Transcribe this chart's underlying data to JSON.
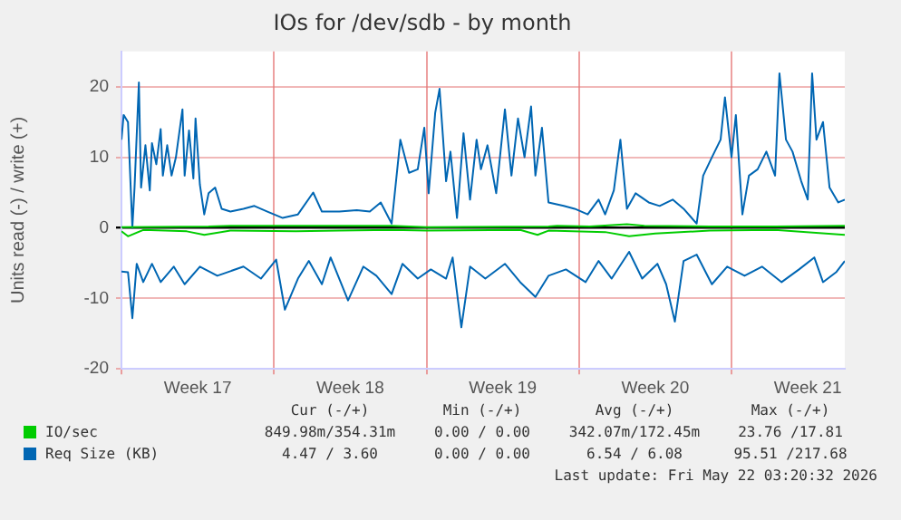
{
  "chart_data": {
    "type": "line",
    "title": "IOs for /dev/sdb - by month",
    "ylabel": "Units read (-) / write (+)",
    "xlim": [
      "2026-04-20T00:00",
      "2026-05-23T04:48"
    ],
    "xticks": [
      {
        "value": "2026-04-20T00:00",
        "label": null
      },
      {
        "value": "2026-04-23T12:00",
        "label": "Week 17"
      },
      {
        "value": "2026-04-27T00:00",
        "label": null
      },
      {
        "value": "2026-04-30T12:00",
        "label": "Week 18"
      },
      {
        "value": "2026-05-04T00:00",
        "label": null
      },
      {
        "value": "2026-05-07T12:00",
        "label": "Week 19"
      },
      {
        "value": "2026-05-11T00:00",
        "label": null
      },
      {
        "value": "2026-05-14T12:00",
        "label": "Week 20"
      },
      {
        "value": "2026-05-18T00:00",
        "label": null
      },
      {
        "value": "2026-05-21T12:00",
        "label": "Week 21"
      }
    ],
    "ylim": [
      -20,
      25
    ],
    "yticks": [
      -20,
      -10,
      0,
      10,
      20
    ],
    "grid": true,
    "legend": "bottom left",
    "marker": "none",
    "line_style": "solid",
    "series": [
      {
        "color": "#00cc00",
        "x": [
          "2026-04-20T00:00",
          "2026-04-20T07:12",
          "2026-04-21T00:00",
          "2026-04-23T00:00",
          "2026-04-23T19:12",
          "2026-04-25T00:00",
          "2026-04-28T00:00",
          "2026-04-30T00:00",
          "2026-05-02T09:36",
          "2026-05-04T00:00",
          "2026-05-08T07:12",
          "2026-05-09T02:24",
          "2026-05-09T14:24",
          "2026-05-12T04:48",
          "2026-05-13T07:12",
          "2026-05-14T12:00",
          "2026-05-17T00:00",
          "2026-05-20T00:00",
          "2026-05-23T04:48"
        ],
        "values": [
          -0.5,
          -1.2,
          -0.3,
          -0.5,
          -1,
          -0.4,
          -0.5,
          -0.4,
          -0.3,
          -0.4,
          -0.3,
          -1,
          -0.4,
          -0.6,
          -1.2,
          -0.8,
          -0.4,
          -0.3,
          -1
        ]
      },
      {
        "name": "IO/sec",
        "color": "#00cc00",
        "x": [
          "2026-04-20T00:00",
          "2026-04-24T00:00",
          "2026-04-25T00:00",
          "2026-04-30T00:00",
          "2026-05-02T09:36",
          "2026-05-04T00:00",
          "2026-05-09T14:24",
          "2026-05-10T00:00",
          "2026-05-11T12:00",
          "2026-05-13T04:48",
          "2026-05-14T00:00",
          "2026-05-17T00:00",
          "2026-05-20T00:00",
          "2026-05-23T04:48"
        ],
        "values": [
          0.1,
          0.2,
          0.3,
          0.3,
          0.3,
          0.1,
          0.2,
          0.3,
          0.2,
          0.5,
          0.3,
          0.2,
          0.2,
          0.3
        ]
      },
      {
        "color": "#0066b3",
        "x": [
          "2026-04-20T00:00",
          "2026-04-20T07:12",
          "2026-04-20T12:00",
          "2026-04-20T16:48",
          "2026-04-21T00:00",
          "2026-04-21T09:36",
          "2026-04-21T19:12",
          "2026-04-22T09:36",
          "2026-04-22T21:36",
          "2026-04-23T14:24",
          "2026-04-24T09:36",
          "2026-04-25T14:24",
          "2026-04-26T09:36",
          "2026-04-27T02:24",
          "2026-04-27T12:00",
          "2026-04-28T02:24",
          "2026-04-28T14:24",
          "2026-04-29T04:48",
          "2026-04-29T14:24",
          "2026-04-30T09:36",
          "2026-05-01T02:24",
          "2026-05-01T16:48",
          "2026-05-02T09:36",
          "2026-05-02T21:36",
          "2026-05-03T14:24",
          "2026-05-04T04:48",
          "2026-05-04T21:36",
          "2026-05-05T04:48",
          "2026-05-05T14:24",
          "2026-05-06T00:00",
          "2026-05-06T16:48",
          "2026-05-07T14:24",
          "2026-05-08T07:12",
          "2026-05-09T00:00",
          "2026-05-09T14:24",
          "2026-05-10T09:36",
          "2026-05-11T07:12",
          "2026-05-11T21:36",
          "2026-05-12T12:00",
          "2026-05-13T07:12",
          "2026-05-13T21:36",
          "2026-05-14T14:24",
          "2026-05-15T00:00",
          "2026-05-15T09:36",
          "2026-05-15T19:12",
          "2026-05-16T09:36",
          "2026-05-17T02:24",
          "2026-05-17T19:12",
          "2026-05-18T14:24",
          "2026-05-19T09:36",
          "2026-05-20T07:12",
          "2026-05-21T02:24",
          "2026-05-21T19:12",
          "2026-05-22T04:48",
          "2026-05-22T19:12",
          "2026-05-23T04:48"
        ],
        "values": [
          -6.2,
          -6.3,
          -12.8,
          -5.1,
          -7.7,
          -5.1,
          -7.7,
          -5.5,
          -8,
          -5.5,
          -6.8,
          -5.5,
          -7.2,
          -4.5,
          -11.6,
          -7.2,
          -4.7,
          -8,
          -4.2,
          -10.3,
          -5.5,
          -6.8,
          -9.4,
          -5.1,
          -7.2,
          -5.9,
          -7.2,
          -4.2,
          -14.1,
          -5.5,
          -7.2,
          -5.1,
          -7.7,
          -9.8,
          -6.8,
          -5.9,
          -7.7,
          -4.7,
          -7.2,
          -3.4,
          -7.2,
          -5.1,
          -8,
          -13.3,
          -4.7,
          -3.8,
          -8,
          -5.5,
          -6.8,
          -5.5,
          -7.7,
          -5.9,
          -4.2,
          -7.7,
          -6.3,
          -4.7
        ]
      },
      {
        "name": "Req Size (KB)",
        "color": "#0066b3",
        "x": [
          "2026-04-20T00:00",
          "2026-04-20T02:24",
          "2026-04-20T07:12",
          "2026-04-20T12:00",
          "2026-04-20T14:24",
          "2026-04-20T19:12",
          "2026-04-20T21:36",
          "2026-04-21T02:24",
          "2026-04-21T07:12",
          "2026-04-21T09:36",
          "2026-04-21T14:24",
          "2026-04-21T19:12",
          "2026-04-21T21:36",
          "2026-04-22T02:24",
          "2026-04-22T07:12",
          "2026-04-22T12:00",
          "2026-04-22T19:12",
          "2026-04-22T21:36",
          "2026-04-23T02:24",
          "2026-04-23T07:12",
          "2026-04-23T09:36",
          "2026-04-23T14:24",
          "2026-04-23T19:12",
          "2026-04-24T00:00",
          "2026-04-24T07:12",
          "2026-04-24T14:24",
          "2026-04-25T00:00",
          "2026-04-25T14:24",
          "2026-04-26T02:24",
          "2026-04-26T16:48",
          "2026-04-27T09:36",
          "2026-04-28T02:24",
          "2026-04-28T19:12",
          "2026-04-29T04:48",
          "2026-04-30T00:00",
          "2026-04-30T19:12",
          "2026-05-01T09:36",
          "2026-05-01T21:36",
          "2026-05-02T09:36",
          "2026-05-02T19:12",
          "2026-05-03T04:48",
          "2026-05-03T14:24",
          "2026-05-03T21:36",
          "2026-05-04T02:24",
          "2026-05-04T09:36",
          "2026-05-04T14:24",
          "2026-05-04T21:36",
          "2026-05-05T02:24",
          "2026-05-05T09:36",
          "2026-05-05T16:48",
          "2026-05-06T00:00",
          "2026-05-06T07:12",
          "2026-05-06T12:00",
          "2026-05-06T19:12",
          "2026-05-07T04:48",
          "2026-05-07T14:24",
          "2026-05-07T21:36",
          "2026-05-08T04:48",
          "2026-05-08T12:00",
          "2026-05-08T19:12",
          "2026-05-09T00:00",
          "2026-05-09T07:12",
          "2026-05-09T14:24",
          "2026-05-10T07:12",
          "2026-05-10T19:12",
          "2026-05-11T09:36",
          "2026-05-11T21:36",
          "2026-05-12T04:48",
          "2026-05-12T14:24",
          "2026-05-12T21:36",
          "2026-05-13T04:48",
          "2026-05-13T14:24",
          "2026-05-14T04:48",
          "2026-05-14T16:48",
          "2026-05-15T07:12",
          "2026-05-15T19:12",
          "2026-05-16T09:36",
          "2026-05-16T16:48",
          "2026-05-17T02:24",
          "2026-05-17T12:00",
          "2026-05-17T16:48",
          "2026-05-18T00:00",
          "2026-05-18T04:48",
          "2026-05-18T12:00",
          "2026-05-18T19:12",
          "2026-05-19T04:48",
          "2026-05-19T14:24",
          "2026-05-20T00:00",
          "2026-05-20T04:48",
          "2026-05-20T12:00",
          "2026-05-20T19:12",
          "2026-05-21T04:48",
          "2026-05-21T12:00",
          "2026-05-21T16:48",
          "2026-05-21T21:36",
          "2026-05-22T04:48",
          "2026-05-22T12:00",
          "2026-05-22T21:36",
          "2026-05-23T04:48"
        ],
        "values": [
          12.5,
          16,
          15,
          0,
          5.7,
          20.6,
          5.7,
          11.7,
          5.3,
          12,
          9,
          14,
          7.4,
          11.7,
          7.4,
          10,
          16.8,
          7.4,
          13.8,
          7,
          15.5,
          6.1,
          1.9,
          4.9,
          5.7,
          2.7,
          2.3,
          2.7,
          3.1,
          2.3,
          1.4,
          1.9,
          5,
          2.3,
          2.3,
          2.5,
          2.3,
          3.6,
          0.6,
          12.5,
          7.8,
          8.3,
          14.2,
          4.9,
          16.3,
          19.7,
          6.6,
          10.8,
          1.4,
          13.4,
          4,
          12.5,
          8.3,
          11.7,
          4.9,
          16.8,
          7.4,
          15.5,
          10,
          17.2,
          7.4,
          14.2,
          3.6,
          3.1,
          2.7,
          1.9,
          4,
          1.9,
          5.3,
          12.5,
          2.7,
          4.9,
          3.6,
          3.1,
          4,
          2.7,
          0.6,
          7.4,
          10,
          12.5,
          18.5,
          10,
          16,
          1.9,
          7.4,
          8.3,
          10.8,
          7.4,
          21.9,
          12.5,
          10.8,
          6.6,
          4,
          21.9,
          12.5,
          15,
          5.7,
          3.6,
          4
        ]
      }
    ],
    "annotations": [
      "Cur (-/+)",
      "Min (-/+)",
      "Avg (-/+)",
      "Max (-/+)",
      "849.98m/354.31m",
      "0.00 / 0.00",
      "342.07m/172.45m",
      "23.76 /17.81",
      "4.47 / 3.60",
      "0.00 / 0.00",
      "6.54 / 6.08",
      "95.51 /217.68",
      "Last update: Fri May 22 03:20:32 2026"
    ]
  }
}
